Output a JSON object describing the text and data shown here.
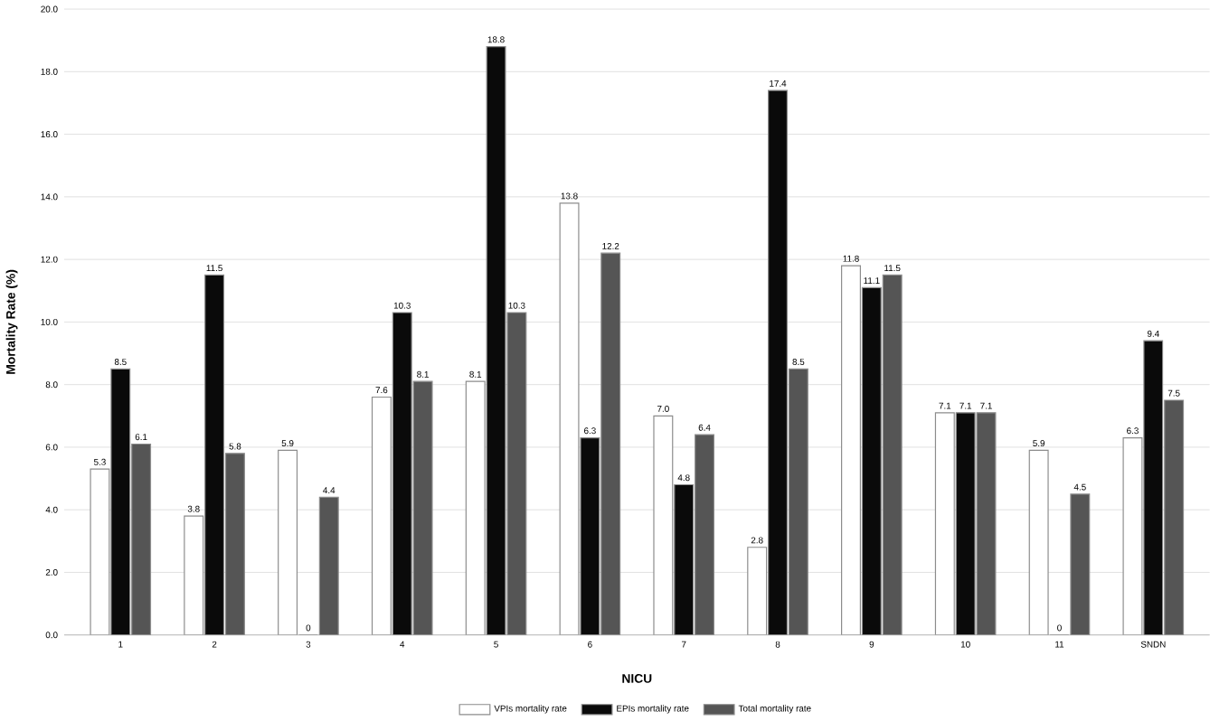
{
  "chart_data": {
    "type": "bar",
    "xlabel": "NICU",
    "ylabel": "Mortality Rate (%)",
    "categories": [
      "1",
      "2",
      "3",
      "4",
      "5",
      "6",
      "7",
      "8",
      "9",
      "10",
      "11",
      "SNDN"
    ],
    "series": [
      {
        "name": "VPIs mortality rate",
        "color": "#ffffff",
        "values": [
          5.3,
          3.8,
          5.9,
          7.6,
          8.1,
          13.8,
          7.0,
          2.8,
          11.8,
          7.1,
          5.9,
          6.3
        ],
        "value_labels": [
          "5.3",
          "3.8",
          "5.9",
          "7.6",
          "8.1",
          "13.8",
          "7.0",
          "2.8",
          "11.8",
          "7.1",
          "5.9",
          "6.3"
        ]
      },
      {
        "name": "EPIs mortality rate",
        "color": "#0a0a0a",
        "values": [
          8.5,
          11.5,
          0,
          10.3,
          18.8,
          6.3,
          4.8,
          17.4,
          11.1,
          7.1,
          0,
          9.4
        ],
        "value_labels": [
          "8.5",
          "11.5",
          "0",
          "10.3",
          "18.8",
          "6.3",
          "4.8",
          "17.4",
          "11.1",
          "7.1",
          "0",
          "9.4"
        ]
      },
      {
        "name": "Total mortality rate",
        "color": "#555555",
        "values": [
          6.1,
          5.8,
          4.4,
          8.1,
          10.3,
          12.2,
          6.4,
          8.5,
          11.5,
          7.1,
          4.5,
          7.5
        ],
        "value_labels": [
          "6.1",
          "5.8",
          "4.4",
          "8.1",
          "10.3",
          "12.2",
          "6.4",
          "8.5",
          "11.5",
          "7.1",
          "4.5",
          "7.5"
        ]
      }
    ],
    "ylim": [
      0,
      20
    ],
    "yticks": [
      {
        "value": 0,
        "label": "0.0"
      },
      {
        "value": 2,
        "label": "2.0"
      },
      {
        "value": 4,
        "label": "4.0"
      },
      {
        "value": 6,
        "label": "6.0"
      },
      {
        "value": 8,
        "label": "8.0"
      },
      {
        "value": 10,
        "label": "10.0"
      },
      {
        "value": 12,
        "label": "12.0"
      },
      {
        "value": 14,
        "label": "14.0"
      },
      {
        "value": 16,
        "label": "16.0"
      },
      {
        "value": 18,
        "label": "18.0"
      },
      {
        "value": 20,
        "label": "20.0"
      }
    ],
    "grid": "y",
    "legend": "bottom"
  }
}
